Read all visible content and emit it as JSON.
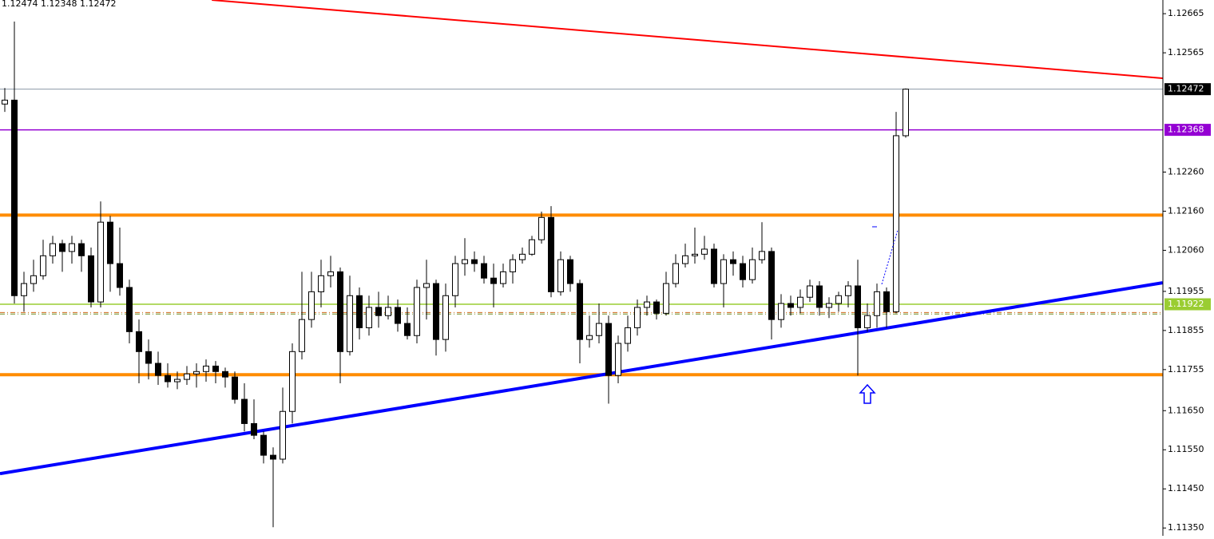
{
  "chart_data": {
    "type": "candlestick",
    "title": "1.12474 1.12348 1.12472",
    "up_color": "#ffffff",
    "down_color": "#000000",
    "open": [
      1.12434,
      1.12444,
      1.11944,
      1.11975,
      1.11995,
      1.12046,
      1.12077,
      1.12057,
      1.12077,
      1.12046,
      1.11928,
      1.12132,
      1.12026,
      1.11965,
      1.11852,
      1.11801,
      1.11771,
      1.1174,
      1.11724,
      1.1173,
      1.11744,
      1.1175,
      1.11764,
      1.1175,
      1.11736,
      1.11679,
      1.11617,
      1.11587,
      1.11536,
      1.11526,
      1.11648,
      1.11801,
      1.11883,
      1.11954,
      1.11995,
      1.12005,
      1.11801,
      1.11944,
      1.11862,
      1.11914,
      1.11893,
      1.11914,
      1.11873,
      1.11842,
      1.11965,
      1.11975,
      1.11832,
      1.11944,
      1.12026,
      1.12036,
      1.12026,
      1.11989,
      1.11975,
      1.12005,
      1.12036,
      1.1205,
      1.12087,
      1.12144,
      1.11954,
      1.12036,
      1.11975,
      1.11832,
      1.11842,
      1.11873,
      1.1174,
      1.11822,
      1.11862,
      1.11914,
      1.11928,
      1.11899,
      1.11975,
      1.12026,
      1.12046,
      1.1205,
      1.12063,
      1.11975,
      1.12036,
      1.12026,
      1.11985,
      1.12036,
      1.12057,
      1.11883,
      1.11924,
      1.11914,
      1.1194,
      1.11969,
      1.11914,
      1.11924,
      1.11944,
      1.11969,
      1.11862,
      1.11893,
      1.11954,
      1.11903,
      1.12353
    ],
    "high": [
      1.12475,
      1.12645,
      1.12005,
      1.12036,
      1.12087,
      1.12097,
      1.12087,
      1.12097,
      1.12087,
      1.12067,
      1.12185,
      1.12148,
      1.12118,
      1.11985,
      1.11883,
      1.11832,
      1.11801,
      1.11771,
      1.1175,
      1.11764,
      1.11771,
      1.11781,
      1.11777,
      1.1176,
      1.1175,
      1.1172,
      1.11679,
      1.11597,
      1.11556,
      1.11709,
      1.11822,
      1.12005,
      1.12005,
      1.12036,
      1.12046,
      1.12016,
      1.11995,
      1.11965,
      1.11944,
      1.11954,
      1.11944,
      1.11934,
      1.11914,
      1.11985,
      1.12036,
      1.11985,
      1.11975,
      1.12046,
      1.12091,
      1.12057,
      1.12046,
      1.12026,
      1.12026,
      1.1205,
      1.12067,
      1.12097,
      1.12159,
      1.12173,
      1.12057,
      1.12046,
      1.11985,
      1.11893,
      1.11924,
      1.11893,
      1.11842,
      1.11893,
      1.11934,
      1.11944,
      1.11934,
      1.12005,
      1.1205,
      1.12077,
      1.12118,
      1.12097,
      1.12077,
      1.1205,
      1.12057,
      1.12046,
      1.12067,
      1.12132,
      1.12067,
      1.11948,
      1.11944,
      1.1196,
      1.11985,
      1.11981,
      1.1194,
      1.11954,
      1.11981,
      1.12036,
      1.11924,
      1.11975,
      1.11965,
      1.12414,
      1.12474
    ],
    "low": [
      1.12414,
      1.11924,
      1.11903,
      1.11954,
      1.11985,
      1.12026,
      1.12005,
      1.12026,
      1.12005,
      1.11914,
      1.11914,
      1.11954,
      1.11944,
      1.11822,
      1.1172,
      1.1173,
      1.11716,
      1.11709,
      1.11705,
      1.11716,
      1.11709,
      1.11724,
      1.1172,
      1.11709,
      1.11668,
      1.11597,
      1.11577,
      1.11515,
      1.11352,
      1.11515,
      1.11617,
      1.11781,
      1.11862,
      1.11914,
      1.11965,
      1.1172,
      1.11791,
      1.11832,
      1.11842,
      1.11862,
      1.11883,
      1.11852,
      1.11832,
      1.11822,
      1.11883,
      1.11791,
      1.11801,
      1.11914,
      1.11995,
      1.12005,
      1.11975,
      1.11914,
      1.11965,
      1.11975,
      1.12026,
      1.12046,
      1.12077,
      1.1194,
      1.11944,
      1.11954,
      1.11771,
      1.11811,
      1.11822,
      1.11668,
      1.1172,
      1.11801,
      1.11842,
      1.11893,
      1.11883,
      1.11893,
      1.11965,
      1.12016,
      1.12026,
      1.12036,
      1.11965,
      1.11914,
      1.11995,
      1.11965,
      1.11975,
      1.12026,
      1.11832,
      1.11862,
      1.11893,
      1.11899,
      1.11928,
      1.11893,
      1.11887,
      1.11903,
      1.11914,
      1.1174,
      1.11852,
      1.11862,
      1.11862,
      1.11899,
      1.12348
    ],
    "close": [
      1.12444,
      1.11944,
      1.11975,
      1.11995,
      1.12046,
      1.12077,
      1.12057,
      1.12077,
      1.12046,
      1.11928,
      1.12132,
      1.12026,
      1.11965,
      1.11852,
      1.11801,
      1.11771,
      1.1174,
      1.11724,
      1.1173,
      1.11744,
      1.1175,
      1.11764,
      1.1175,
      1.11736,
      1.11679,
      1.11617,
      1.11587,
      1.11536,
      1.11526,
      1.11648,
      1.11801,
      1.11883,
      1.11954,
      1.11995,
      1.12005,
      1.11801,
      1.11944,
      1.11862,
      1.11914,
      1.11893,
      1.11914,
      1.11873,
      1.11842,
      1.11965,
      1.11975,
      1.11832,
      1.11944,
      1.12026,
      1.12036,
      1.12026,
      1.11989,
      1.11975,
      1.12005,
      1.12036,
      1.1205,
      1.12087,
      1.12144,
      1.11954,
      1.12036,
      1.11975,
      1.11832,
      1.11842,
      1.11873,
      1.1174,
      1.11822,
      1.11862,
      1.11914,
      1.11928,
      1.11899,
      1.11975,
      1.12026,
      1.12046,
      1.1205,
      1.12063,
      1.11975,
      1.12036,
      1.12026,
      1.11985,
      1.12036,
      1.12057,
      1.11883,
      1.11924,
      1.11914,
      1.1194,
      1.11969,
      1.11914,
      1.11924,
      1.11944,
      1.11969,
      1.11862,
      1.11893,
      1.11954,
      1.11903,
      1.12353,
      1.12472
    ],
    "ylim": [
      1.127,
      1.1133
    ],
    "yticks": [
      1.12665,
      1.12565,
      {
        "value": 1.1226,
        "label": "1.12260"
      },
      {
        "value": 1.1216,
        "label": "1.12160"
      },
      {
        "value": 1.1206,
        "label": "1.12060"
      },
      1.11955,
      1.11855,
      1.11755,
      {
        "value": 1.1165,
        "label": "1.11650"
      },
      {
        "value": 1.1155,
        "label": "1.11550"
      },
      {
        "value": 1.1145,
        "label": "1.11450"
      },
      {
        "value": 1.1135,
        "label": "1.11350"
      }
    ],
    "hlines": [
      {
        "value": 1.12472,
        "color": "#8c9aa6",
        "width": 1,
        "style": "solid",
        "label": true,
        "tag_color": "#000000"
      },
      {
        "value": 1.12368,
        "color": "#9400d3",
        "width": 1.5,
        "style": "solid",
        "label": true,
        "tag_color": "#9400d3"
      },
      {
        "value": 1.1215,
        "color": "#ff8c00",
        "width": 4,
        "style": "solid",
        "label": false
      },
      {
        "value": 1.11922,
        "color": "#9acd32",
        "width": 1.5,
        "style": "solid",
        "label": true,
        "tag_color": "#9acd32"
      },
      {
        "value": 1.11901,
        "color": "#d2691e",
        "width": 1,
        "style": "dashdot",
        "label": false
      },
      {
        "value": 1.11897,
        "color": "#6b8e23",
        "width": 1,
        "style": "dashdot",
        "label": false
      },
      {
        "value": 1.11742,
        "color": "#ff8c00",
        "width": 4,
        "style": "solid",
        "label": false
      }
    ],
    "trendlines": [
      {
        "color": "#ff0000",
        "width": 2,
        "x": [
          21.6,
          120.8
        ],
        "y": [
          1.127,
          1.125
        ]
      },
      {
        "color": "#0000ff",
        "width": 4,
        "x": [
          -0.5,
          120.8
        ],
        "y": [
          1.11489,
          1.11977
        ]
      }
    ]
  }
}
